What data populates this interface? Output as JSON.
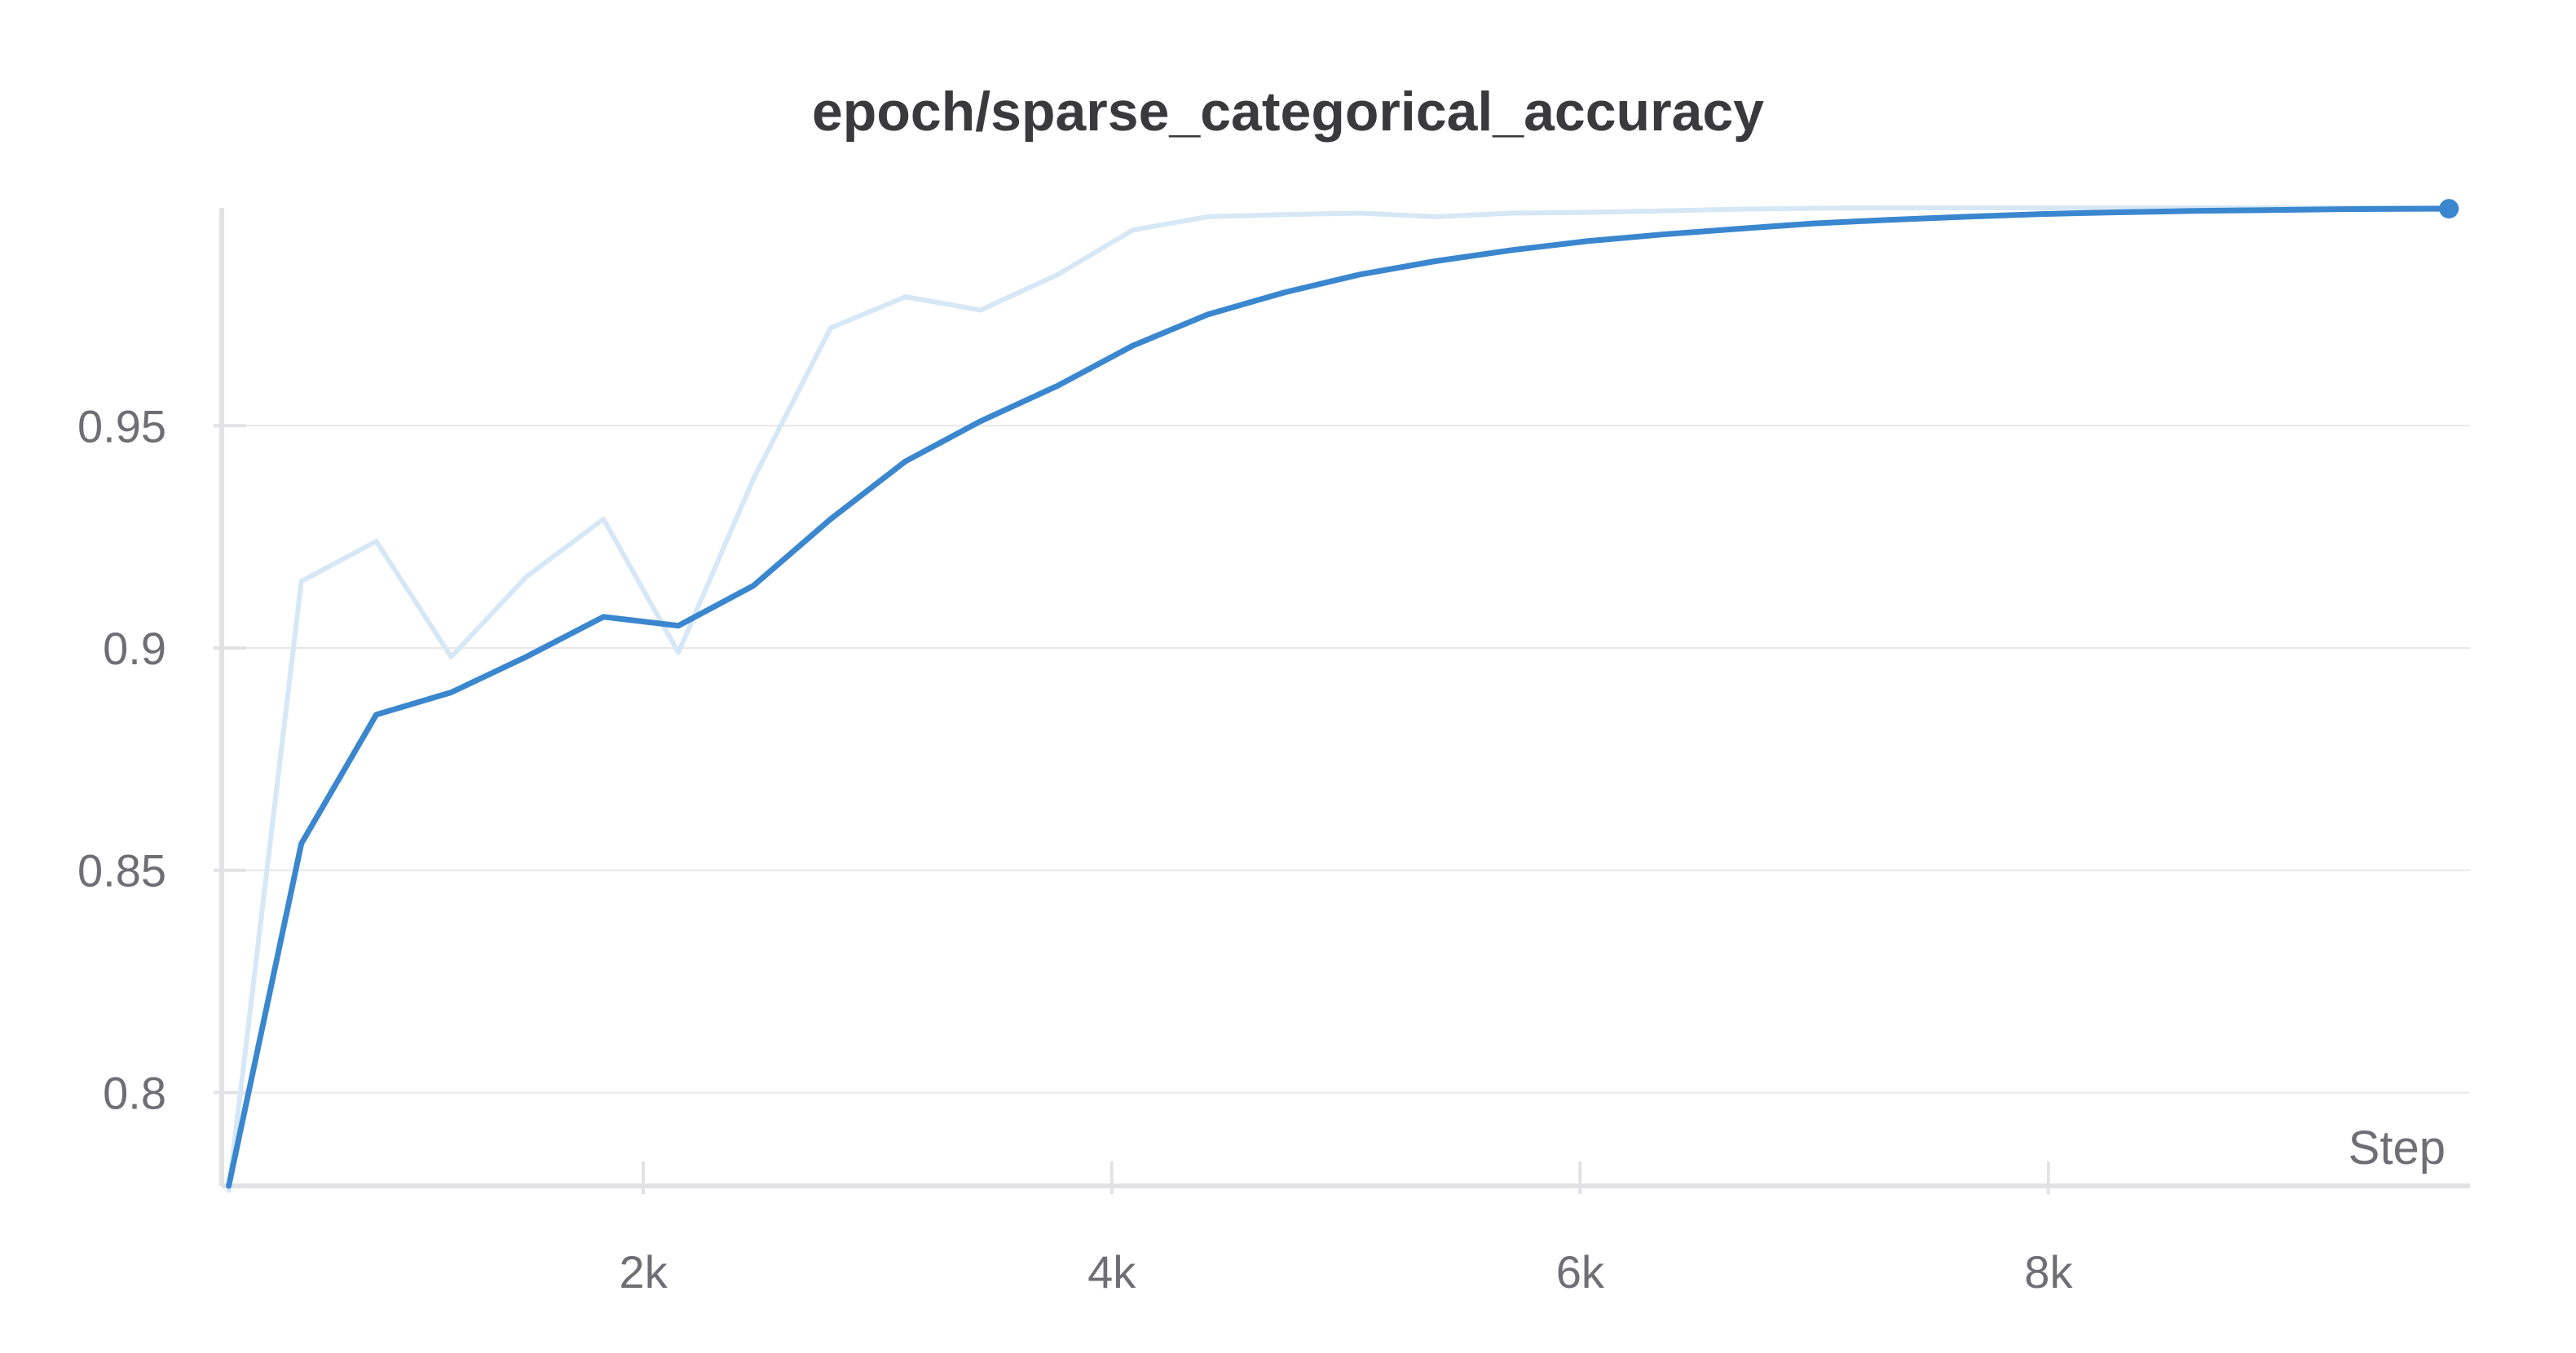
{
  "chart_data": {
    "type": "line",
    "title": "epoch/sparse_categorical_accuracy",
    "xlabel": "Step",
    "ylabel": "",
    "xlim": [
      200,
      9800
    ],
    "ylim": [
      0.779,
      0.999
    ],
    "x_ticks": [
      2000,
      4000,
      6000,
      8000
    ],
    "x_tick_labels": [
      "2k",
      "4k",
      "6k",
      "8k"
    ],
    "y_ticks": [
      0.8,
      0.85,
      0.9,
      0.95
    ],
    "y_tick_labels": [
      "0.8",
      "0.85",
      "0.9",
      "0.95"
    ],
    "grid": true,
    "legend": "none",
    "colors": {
      "smoothed": "#3a87cf",
      "raw": "#d6e7f6",
      "grid": "#e8e8ea",
      "axis": "#e2e2e4"
    },
    "series": [
      {
        "role": "raw",
        "x": [
          230,
          540,
          860,
          1180,
          1500,
          1830,
          2150,
          2470,
          2800,
          3120,
          3440,
          3770,
          4090,
          4410,
          4740,
          5060,
          5380,
          5710,
          6030,
          6350,
          6680,
          7000,
          7320,
          7650,
          7970,
          8290,
          8620,
          8940,
          9260,
          9590,
          9710
        ],
        "y": [
          0.778,
          0.915,
          0.924,
          0.898,
          0.916,
          0.929,
          0.899,
          0.938,
          0.972,
          0.979,
          0.976,
          0.984,
          0.994,
          0.997,
          0.9975,
          0.9978,
          0.997,
          0.9978,
          0.998,
          0.9983,
          0.9987,
          0.9989,
          0.999,
          0.999,
          0.999,
          0.999,
          0.999,
          0.999,
          0.999,
          0.999,
          0.999
        ]
      },
      {
        "role": "smoothed",
        "x": [
          230,
          540,
          860,
          1180,
          1500,
          1830,
          2150,
          2470,
          2800,
          3120,
          3440,
          3770,
          4090,
          4410,
          4740,
          5060,
          5380,
          5710,
          6030,
          6350,
          6680,
          7000,
          7320,
          7650,
          7970,
          8290,
          8620,
          8940,
          9260,
          9590,
          9710
        ],
        "y": [
          0.779,
          0.856,
          0.885,
          0.89,
          0.898,
          0.907,
          0.905,
          0.914,
          0.929,
          0.942,
          0.951,
          0.959,
          0.968,
          0.975,
          0.98,
          0.984,
          0.987,
          0.9895,
          0.9915,
          0.993,
          0.9943,
          0.9955,
          0.9963,
          0.997,
          0.9976,
          0.998,
          0.9983,
          0.9985,
          0.9987,
          0.9988,
          0.9988
        ]
      }
    ]
  }
}
